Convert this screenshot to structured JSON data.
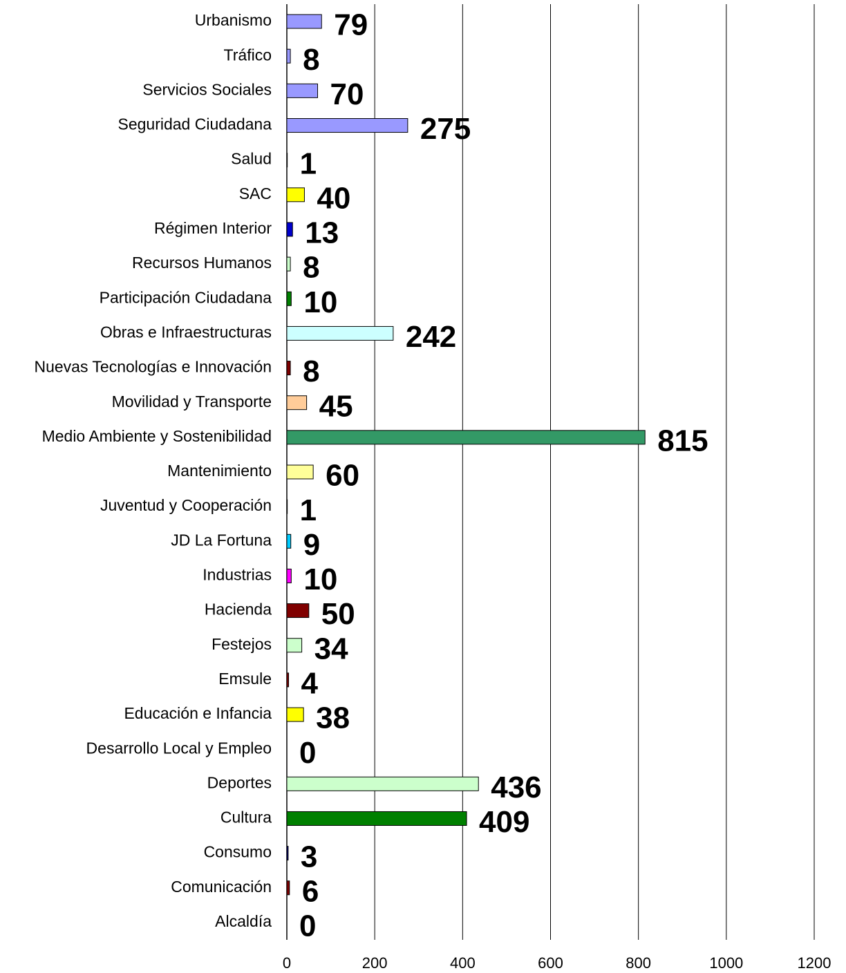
{
  "chart_data": {
    "type": "hbar",
    "categories": [
      "Urbanismo",
      "Tráfico",
      "Servicios Sociales",
      "Seguridad Ciudadana",
      "Salud",
      "SAC",
      "Régimen Interior",
      "Recursos Humanos",
      "Participación Ciudadana",
      "Obras e Infraestructuras",
      "Nuevas Tecnologías e Innovación",
      "Movilidad y Transporte",
      "Medio Ambiente y Sostenibilidad",
      "Mantenimiento",
      "Juventud y Cooperación",
      "JD La Fortuna",
      "Industrias",
      "Hacienda",
      "Festejos",
      "Emsule",
      "Educación e Infancia",
      "Desarrollo Local y Empleo",
      "Deportes",
      "Cultura",
      "Consumo",
      "Comunicación",
      "Alcaldía"
    ],
    "values": [
      79,
      8,
      70,
      275,
      1,
      40,
      13,
      8,
      10,
      242,
      8,
      45,
      815,
      60,
      1,
      9,
      10,
      50,
      34,
      4,
      38,
      0,
      436,
      409,
      3,
      6,
      0
    ],
    "colors": [
      "#9999ff",
      "#9999ff",
      "#9999ff",
      "#9999ff",
      "#800000",
      "#ffff00",
      "#0000cc",
      "#ccffcc",
      "#008000",
      "#ccffff",
      "#800000",
      "#ffcc99",
      "#339966",
      "#ffff99",
      "#000080",
      "#00ccff",
      "#ff00ff",
      "#800000",
      "#ccffcc",
      "#800000",
      "#ffff00",
      "#9999ff",
      "#ccffcc",
      "#008000",
      "#000080",
      "#800000",
      "#333333"
    ],
    "xlim": [
      0,
      1200
    ],
    "xticks": [
      0,
      200,
      400,
      600,
      800,
      1000,
      1200
    ],
    "grid": true
  }
}
